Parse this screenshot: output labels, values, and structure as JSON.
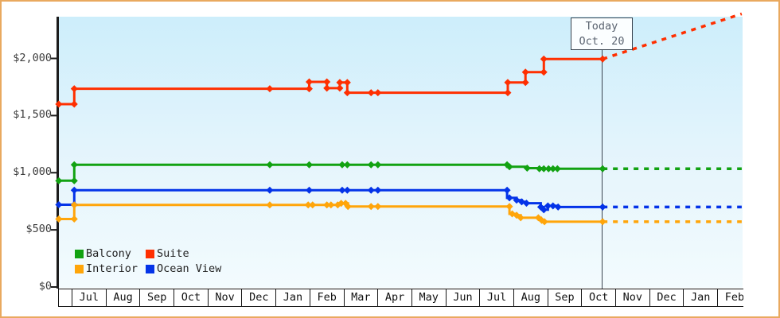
{
  "window": {
    "bg": "#ffffff",
    "frame_color": "#e9a95f"
  },
  "today": {
    "line1": "Today",
    "line2": "Oct. 20",
    "month_position": 15.61
  },
  "legend": {
    "items": [
      {
        "name": "Balcony",
        "color": "#12a212"
      },
      {
        "name": "Suite",
        "color": "#ff2f00"
      },
      {
        "name": "Interior",
        "color": "#ffa50a"
      },
      {
        "name": "Ocean View",
        "color": "#0433e8"
      }
    ]
  },
  "axes": {
    "y_ticks": [
      {
        "label": "$2,000",
        "value": 2000
      },
      {
        "label": "$1,500",
        "value": 1500
      },
      {
        "label": "$1,000",
        "value": 1000
      },
      {
        "label": "$500",
        "value": 500
      },
      {
        "label": "$0",
        "value": 0
      }
    ],
    "x_months": [
      "Jul",
      "Aug",
      "Sep",
      "Oct",
      "Nov",
      "Dec",
      "Jan",
      "Feb",
      "Mar",
      "Apr",
      "May",
      "Jun",
      "Jul",
      "Aug",
      "Sep",
      "Oct",
      "Nov",
      "Dec",
      "Jan",
      "Feb"
    ]
  },
  "chart_data": {
    "type": "line",
    "title": "",
    "xlabel": "",
    "ylabel": "",
    "ylim": [
      0,
      2400
    ],
    "grid": false,
    "legend_position": "bottom-left",
    "x_unit": "months from first Jul tick (fraction = day of month); left edge = -0.385, today = 15.61 (Oct. 20)",
    "today_x": 15.61,
    "series": [
      {
        "name": "Suite",
        "color": "#ff2f00",
        "points": [
          [
            -0.385,
            1600
          ],
          [
            0.07,
            1600
          ],
          [
            0.07,
            1735
          ],
          [
            5.82,
            1735
          ],
          [
            6.98,
            1735
          ],
          [
            6.98,
            1795
          ],
          [
            7.5,
            1795
          ],
          [
            7.5,
            1740
          ],
          [
            7.88,
            1740
          ],
          [
            7.88,
            1790
          ],
          [
            8.1,
            1790
          ],
          [
            8.1,
            1700
          ],
          [
            12.82,
            1700
          ],
          [
            12.82,
            1790
          ],
          [
            13.34,
            1790
          ],
          [
            13.34,
            1880
          ],
          [
            13.88,
            1880
          ],
          [
            13.88,
            1995
          ],
          [
            15.61,
            1995
          ]
        ],
        "dots": [
          [
            -0.385,
            1600
          ],
          [
            0.07,
            1600
          ],
          [
            0.07,
            1735
          ],
          [
            5.82,
            1735
          ],
          [
            6.98,
            1735
          ],
          [
            6.98,
            1795
          ],
          [
            7.5,
            1795
          ],
          [
            7.5,
            1740
          ],
          [
            7.88,
            1740
          ],
          [
            7.88,
            1790
          ],
          [
            8.1,
            1790
          ],
          [
            8.1,
            1700
          ],
          [
            8.8,
            1700
          ],
          [
            9.0,
            1700
          ],
          [
            12.82,
            1700
          ],
          [
            12.82,
            1790
          ],
          [
            13.34,
            1790
          ],
          [
            13.34,
            1880
          ],
          [
            13.88,
            1880
          ],
          [
            13.88,
            1995
          ],
          [
            15.61,
            1995
          ]
        ],
        "projection": [
          [
            15.61,
            1995
          ],
          [
            19.7,
            2390
          ]
        ]
      },
      {
        "name": "Balcony",
        "color": "#12a212",
        "points": [
          [
            -0.385,
            930
          ],
          [
            0.07,
            930
          ],
          [
            0.07,
            1070
          ],
          [
            12.8,
            1070
          ],
          [
            12.8,
            1052
          ],
          [
            13.39,
            1052
          ],
          [
            13.39,
            1040
          ],
          [
            13.81,
            1040
          ],
          [
            13.81,
            1035
          ],
          [
            15.61,
            1035
          ]
        ],
        "dots": [
          [
            -0.385,
            930
          ],
          [
            0.07,
            930
          ],
          [
            0.07,
            1070
          ],
          [
            5.82,
            1070
          ],
          [
            6.98,
            1070
          ],
          [
            7.95,
            1070
          ],
          [
            8.1,
            1070
          ],
          [
            8.8,
            1070
          ],
          [
            9.0,
            1070
          ],
          [
            12.8,
            1070
          ],
          [
            12.87,
            1052
          ],
          [
            13.39,
            1040
          ],
          [
            13.75,
            1035
          ],
          [
            13.88,
            1035
          ],
          [
            14.02,
            1035
          ],
          [
            14.15,
            1035
          ],
          [
            14.28,
            1035
          ],
          [
            15.61,
            1035
          ]
        ],
        "projection": [
          [
            15.61,
            1035
          ],
          [
            19.7,
            1035
          ]
        ]
      },
      {
        "name": "Ocean View",
        "color": "#0433e8",
        "points": [
          [
            -0.385,
            720
          ],
          [
            0.07,
            720
          ],
          [
            0.07,
            847
          ],
          [
            12.8,
            847
          ],
          [
            12.8,
            780
          ],
          [
            13.08,
            780
          ],
          [
            13.08,
            760
          ],
          [
            13.23,
            760
          ],
          [
            13.23,
            745
          ],
          [
            13.37,
            745
          ],
          [
            13.37,
            733
          ],
          [
            13.79,
            733
          ],
          [
            13.79,
            700
          ],
          [
            13.88,
            700
          ],
          [
            13.88,
            676
          ],
          [
            14.0,
            676
          ],
          [
            14.0,
            710
          ],
          [
            14.3,
            710
          ],
          [
            14.3,
            700
          ],
          [
            15.61,
            700
          ]
        ],
        "dots": [
          [
            -0.385,
            720
          ],
          [
            0.07,
            720
          ],
          [
            0.07,
            847
          ],
          [
            5.82,
            847
          ],
          [
            6.98,
            847
          ],
          [
            7.95,
            847
          ],
          [
            8.1,
            847
          ],
          [
            8.8,
            847
          ],
          [
            9.0,
            847
          ],
          [
            12.8,
            847
          ],
          [
            12.87,
            780
          ],
          [
            13.08,
            760
          ],
          [
            13.23,
            745
          ],
          [
            13.37,
            733
          ],
          [
            13.79,
            700
          ],
          [
            13.88,
            676
          ],
          [
            14.0,
            710
          ],
          [
            14.15,
            710
          ],
          [
            14.3,
            700
          ],
          [
            15.61,
            700
          ]
        ],
        "projection": [
          [
            15.61,
            700
          ],
          [
            19.7,
            700
          ]
        ]
      },
      {
        "name": "Interior",
        "color": "#ffa50a",
        "points": [
          [
            -0.385,
            595
          ],
          [
            0.07,
            595
          ],
          [
            0.07,
            718
          ],
          [
            7.82,
            718
          ],
          [
            7.82,
            732
          ],
          [
            8.12,
            732
          ],
          [
            8.12,
            704
          ],
          [
            12.87,
            704
          ],
          [
            12.87,
            640
          ],
          [
            13.08,
            640
          ],
          [
            13.08,
            628
          ],
          [
            13.2,
            628
          ],
          [
            13.2,
            606
          ],
          [
            13.79,
            606
          ],
          [
            13.79,
            583
          ],
          [
            13.88,
            583
          ],
          [
            13.88,
            571
          ],
          [
            15.61,
            571
          ]
        ],
        "dots": [
          [
            -0.385,
            595
          ],
          [
            0.07,
            595
          ],
          [
            0.07,
            718
          ],
          [
            5.82,
            718
          ],
          [
            6.95,
            718
          ],
          [
            7.08,
            718
          ],
          [
            7.5,
            718
          ],
          [
            7.62,
            718
          ],
          [
            7.82,
            718
          ],
          [
            7.92,
            732
          ],
          [
            8.05,
            732
          ],
          [
            8.12,
            704
          ],
          [
            8.8,
            704
          ],
          [
            9.0,
            704
          ],
          [
            12.87,
            704
          ],
          [
            12.95,
            640
          ],
          [
            13.08,
            628
          ],
          [
            13.2,
            606
          ],
          [
            13.72,
            606
          ],
          [
            13.82,
            583
          ],
          [
            13.9,
            571
          ],
          [
            15.61,
            571
          ]
        ],
        "projection": [
          [
            15.61,
            571
          ],
          [
            19.7,
            571
          ]
        ]
      }
    ]
  }
}
